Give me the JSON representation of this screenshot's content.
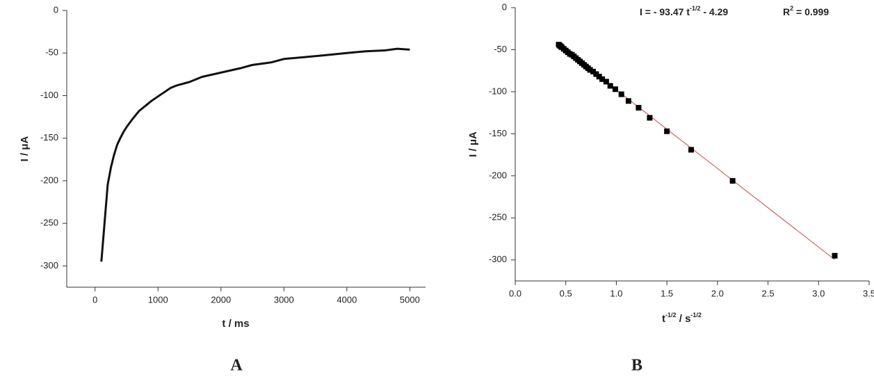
{
  "chart_data": [
    {
      "type": "line",
      "panel_label": "A",
      "xlabel": "t / ms",
      "ylabel": "I / μA",
      "color": "#111111",
      "x": [
        100,
        150,
        200,
        250,
        300,
        350,
        400,
        450,
        500,
        600,
        700,
        800,
        900,
        1000,
        1100,
        1200,
        1300,
        1500,
        1700,
        2000,
        2300,
        2500,
        2800,
        3000,
        3300,
        3600,
        4000,
        4300,
        4600,
        4800,
        5000
      ],
      "values": [
        -295,
        -250,
        -205,
        -185,
        -170,
        -158,
        -150,
        -143,
        -137,
        -127,
        -118,
        -112,
        -106,
        -101,
        -96,
        -91,
        -88,
        -84,
        -78,
        -73,
        -68,
        -64,
        -61,
        -57,
        -55,
        -53,
        -50,
        -48,
        -47,
        -45,
        -46
      ],
      "xlim": [
        -450,
        5250
      ],
      "ylim": [
        -325,
        0
      ],
      "xticks": [
        0,
        1000,
        2000,
        3000,
        4000,
        5000
      ],
      "yticks": [
        0,
        -50,
        -100,
        -150,
        -200,
        -250,
        -300
      ]
    },
    {
      "type": "scatter",
      "panel_label": "B",
      "xlabel_parts": [
        "t",
        "-1/2",
        " / s",
        "-1/2"
      ],
      "ylabel": "I / μA",
      "color": "#000000",
      "equation_parts": [
        "I = - 93.47 t",
        "-1/2",
        " -  4.29"
      ],
      "r2_parts": [
        "R",
        "2",
        " = 0.999"
      ],
      "x": [
        3.16,
        2.15,
        1.74,
        1.5,
        1.33,
        1.22,
        1.12,
        1.05,
        0.99,
        0.94,
        0.9,
        0.86,
        0.83,
        0.8,
        0.77,
        0.74,
        0.72,
        0.7,
        0.68,
        0.66,
        0.64,
        0.62,
        0.6,
        0.58,
        0.56,
        0.54,
        0.52,
        0.5,
        0.48,
        0.46,
        0.45,
        0.44,
        0.43
      ],
      "values": [
        -295,
        -206,
        -169,
        -147,
        -131,
        -119,
        -111,
        -103,
        -97,
        -93,
        -88,
        -85,
        -82,
        -79,
        -76,
        -74,
        -72,
        -70,
        -68,
        -66,
        -64,
        -62,
        -60,
        -58,
        -56,
        -55,
        -53,
        -51,
        -49,
        -47,
        -46,
        -45,
        -44
      ],
      "fit_line": {
        "color": "#c0504d",
        "x": [
          0.42,
          3.16
        ],
        "values": [
          -43.5,
          -299.7
        ]
      },
      "xlim": [
        0,
        3.5
      ],
      "ylim": [
        -325,
        0
      ],
      "xticks": [
        {
          "value": 0,
          "label": "0.0"
        },
        0.5,
        {
          "value": 1,
          "label": "1.0"
        },
        1.5,
        {
          "value": 2,
          "label": "2.0"
        },
        2.5,
        {
          "value": 3,
          "label": "3.0"
        },
        3.5
      ],
      "yticks": [
        0,
        -50,
        -100,
        -150,
        -200,
        -250,
        -300
      ]
    }
  ]
}
